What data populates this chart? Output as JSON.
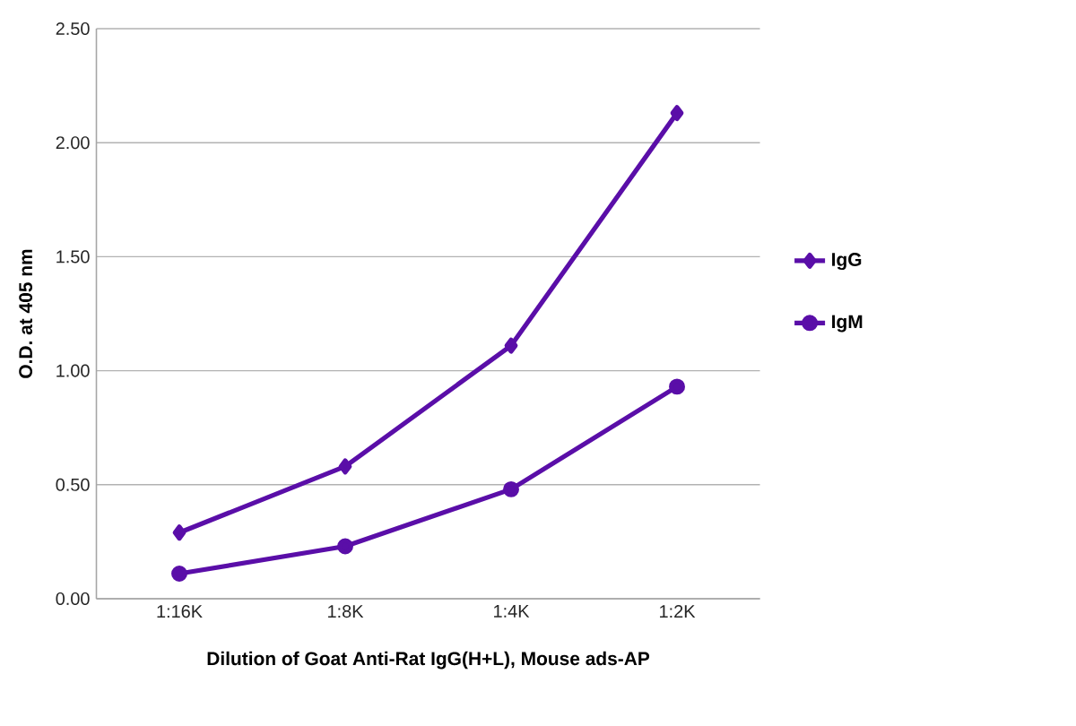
{
  "chart_data": {
    "type": "line",
    "xlabel": "Dilution of Goat Anti-Rat IgG(H+L), Mouse ads-AP",
    "ylabel": "O.D. at 405 nm",
    "categories": [
      "1:16K",
      "1:8K",
      "1:4K",
      "1:2K"
    ],
    "series": [
      {
        "name": "IgG",
        "color": "#5a0ea8",
        "marker": "diamond",
        "values": [
          0.29,
          0.58,
          1.11,
          2.13
        ]
      },
      {
        "name": "IgM",
        "color": "#5a0ea8",
        "marker": "circle",
        "values": [
          0.11,
          0.23,
          0.48,
          0.93
        ]
      }
    ],
    "ylim": [
      0,
      2.5
    ],
    "yticks": [
      {
        "value": 0,
        "label": "0.00"
      },
      {
        "value": 0.5,
        "label": "0.50"
      },
      {
        "value": 1,
        "label": "1.00"
      },
      {
        "value": 1.5,
        "label": "1.50"
      },
      {
        "value": 2,
        "label": "2.00"
      },
      {
        "value": 2.5,
        "label": "2.50"
      }
    ],
    "grid": "y",
    "legend": "right",
    "line_style": "solid"
  }
}
